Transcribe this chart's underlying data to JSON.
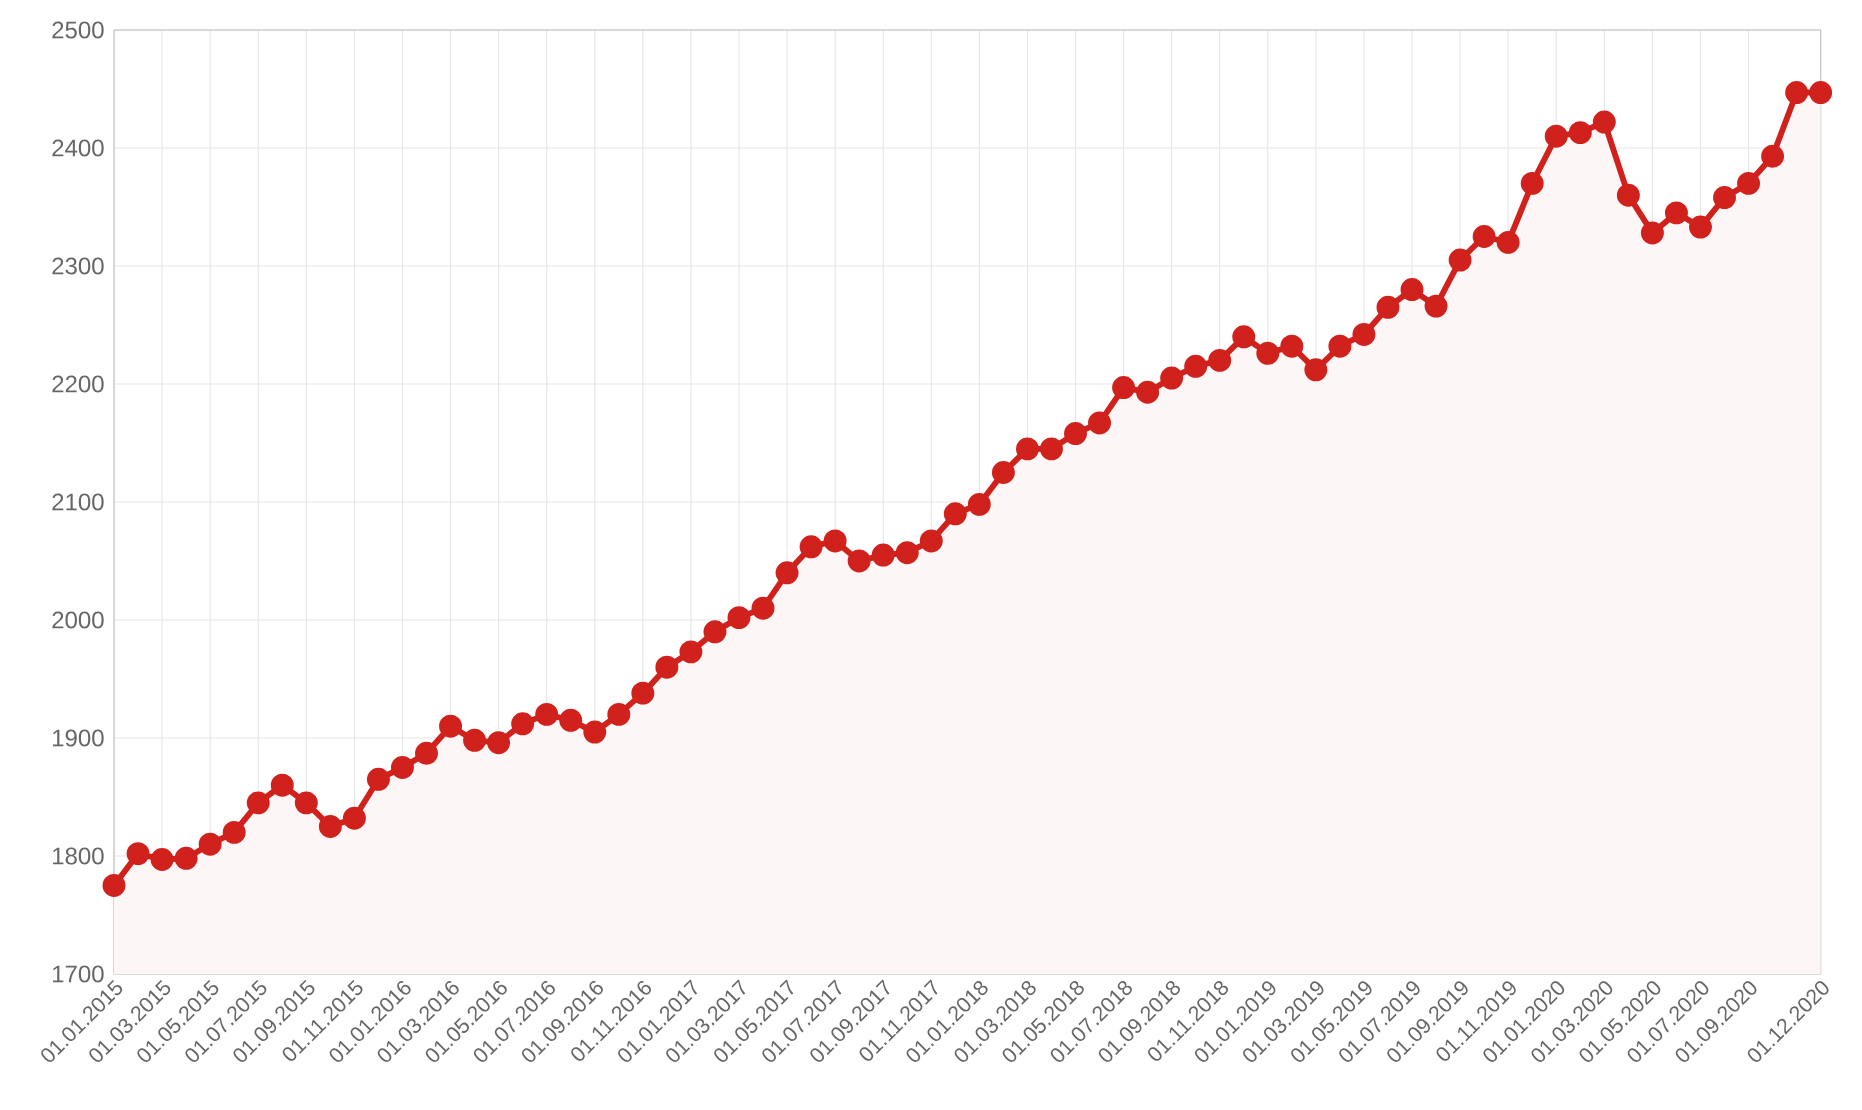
{
  "chart_data": {
    "type": "area",
    "categories": [
      "01.01.2015",
      null,
      "01.03.2015",
      null,
      "01.05.2015",
      null,
      "01.07.2015",
      null,
      "01.09.2015",
      null,
      "01.11.2015",
      null,
      "01.01.2016",
      null,
      "01.03.2016",
      null,
      "01.05.2016",
      null,
      "01.07.2016",
      null,
      "01.09.2016",
      null,
      "01.11.2016",
      null,
      "01.01.2017",
      null,
      "01.03.2017",
      null,
      "01.05.2017",
      null,
      "01.07.2017",
      null,
      "01.09.2017",
      null,
      "01.11.2017",
      null,
      "01.01.2018",
      null,
      "01.03.2018",
      null,
      "01.05.2018",
      null,
      "01.07.2018",
      null,
      "01.09.2018",
      null,
      "01.11.2018",
      null,
      "01.01.2019",
      null,
      "01.03.2019",
      null,
      "01.05.2019",
      null,
      "01.07.2019",
      null,
      "01.09.2019",
      null,
      "01.11.2019",
      null,
      "01.01.2020",
      null,
      "01.03.2020",
      null,
      "01.05.2020",
      null,
      "01.07.2020",
      null,
      "01.09.2020",
      null,
      null,
      "01.12.2020"
    ],
    "values": [
      1775,
      1802,
      1797,
      1798,
      1810,
      1820,
      1845,
      1860,
      1845,
      1825,
      1832,
      1865,
      1875,
      1887,
      1910,
      1898,
      1896,
      1912,
      1920,
      1915,
      1905,
      1920,
      1938,
      1960,
      1973,
      1990,
      2002,
      2010,
      2040,
      2062,
      2067,
      2050,
      2055,
      2057,
      2067,
      2090,
      2098,
      2125,
      2145,
      2145,
      2158,
      2167,
      2197,
      2193,
      2205,
      2215,
      2220,
      2240,
      2226,
      2232,
      2212,
      2232,
      2242,
      2265,
      2280,
      2266,
      2305,
      2325,
      2320,
      2370,
      2410,
      2413,
      2422,
      2360,
      2328,
      2345,
      2333,
      2358,
      2370,
      2393,
      2447,
      2447
    ],
    "color": "#d0211c",
    "ylim": [
      1700,
      2500
    ],
    "yticks": [
      1700,
      1800,
      1900,
      2000,
      2100,
      2200,
      2300,
      2400,
      2500
    ],
    "grid": true,
    "marker": "circle"
  }
}
